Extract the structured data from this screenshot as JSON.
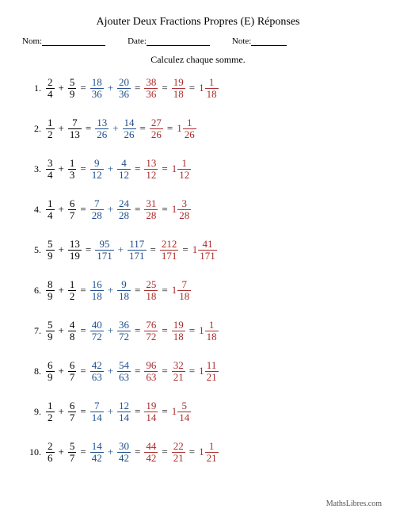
{
  "title": "Ajouter Deux Fractions Propres (E) Réponses",
  "labels": {
    "name": "Nom:",
    "date": "Date:",
    "note": "Note:"
  },
  "instruction": "Calculez chaque somme.",
  "footer": "MathsLibres.com",
  "colors": {
    "black": "#000000",
    "blue": "#1e4e8c",
    "red": "#aa2b2b",
    "bg": "#ffffff"
  },
  "problems": [
    {
      "n": "1.",
      "a": {
        "n": "2",
        "d": "4"
      },
      "b": {
        "n": "5",
        "d": "9"
      },
      "s1": {
        "n": "18",
        "d": "36"
      },
      "s2": {
        "n": "20",
        "d": "36"
      },
      "sum": {
        "n": "38",
        "d": "36"
      },
      "simp": {
        "n": "19",
        "d": "18"
      },
      "mix": {
        "w": "1",
        "n": "1",
        "d": "18"
      }
    },
    {
      "n": "2.",
      "a": {
        "n": "1",
        "d": "2"
      },
      "b": {
        "n": "7",
        "d": "13"
      },
      "s1": {
        "n": "13",
        "d": "26"
      },
      "s2": {
        "n": "14",
        "d": "26"
      },
      "sum": {
        "n": "27",
        "d": "26"
      },
      "simp": null,
      "mix": {
        "w": "1",
        "n": "1",
        "d": "26"
      }
    },
    {
      "n": "3.",
      "a": {
        "n": "3",
        "d": "4"
      },
      "b": {
        "n": "1",
        "d": "3"
      },
      "s1": {
        "n": "9",
        "d": "12"
      },
      "s2": {
        "n": "4",
        "d": "12"
      },
      "sum": {
        "n": "13",
        "d": "12"
      },
      "simp": null,
      "mix": {
        "w": "1",
        "n": "1",
        "d": "12"
      }
    },
    {
      "n": "4.",
      "a": {
        "n": "1",
        "d": "4"
      },
      "b": {
        "n": "6",
        "d": "7"
      },
      "s1": {
        "n": "7",
        "d": "28"
      },
      "s2": {
        "n": "24",
        "d": "28"
      },
      "sum": {
        "n": "31",
        "d": "28"
      },
      "simp": null,
      "mix": {
        "w": "1",
        "n": "3",
        "d": "28"
      }
    },
    {
      "n": "5.",
      "a": {
        "n": "5",
        "d": "9"
      },
      "b": {
        "n": "13",
        "d": "19"
      },
      "s1": {
        "n": "95",
        "d": "171"
      },
      "s2": {
        "n": "117",
        "d": "171"
      },
      "sum": {
        "n": "212",
        "d": "171"
      },
      "simp": null,
      "mix": {
        "w": "1",
        "n": "41",
        "d": "171"
      }
    },
    {
      "n": "6.",
      "a": {
        "n": "8",
        "d": "9"
      },
      "b": {
        "n": "1",
        "d": "2"
      },
      "s1": {
        "n": "16",
        "d": "18"
      },
      "s2": {
        "n": "9",
        "d": "18"
      },
      "sum": {
        "n": "25",
        "d": "18"
      },
      "simp": null,
      "mix": {
        "w": "1",
        "n": "7",
        "d": "18"
      }
    },
    {
      "n": "7.",
      "a": {
        "n": "5",
        "d": "9"
      },
      "b": {
        "n": "4",
        "d": "8"
      },
      "s1": {
        "n": "40",
        "d": "72"
      },
      "s2": {
        "n": "36",
        "d": "72"
      },
      "sum": {
        "n": "76",
        "d": "72"
      },
      "simp": {
        "n": "19",
        "d": "18"
      },
      "mix": {
        "w": "1",
        "n": "1",
        "d": "18"
      }
    },
    {
      "n": "8.",
      "a": {
        "n": "6",
        "d": "9"
      },
      "b": {
        "n": "6",
        "d": "7"
      },
      "s1": {
        "n": "42",
        "d": "63"
      },
      "s2": {
        "n": "54",
        "d": "63"
      },
      "sum": {
        "n": "96",
        "d": "63"
      },
      "simp": {
        "n": "32",
        "d": "21"
      },
      "mix": {
        "w": "1",
        "n": "11",
        "d": "21"
      }
    },
    {
      "n": "9.",
      "a": {
        "n": "1",
        "d": "2"
      },
      "b": {
        "n": "6",
        "d": "7"
      },
      "s1": {
        "n": "7",
        "d": "14"
      },
      "s2": {
        "n": "12",
        "d": "14"
      },
      "sum": {
        "n": "19",
        "d": "14"
      },
      "simp": null,
      "mix": {
        "w": "1",
        "n": "5",
        "d": "14"
      }
    },
    {
      "n": "10.",
      "a": {
        "n": "2",
        "d": "6"
      },
      "b": {
        "n": "5",
        "d": "7"
      },
      "s1": {
        "n": "14",
        "d": "42"
      },
      "s2": {
        "n": "30",
        "d": "42"
      },
      "sum": {
        "n": "44",
        "d": "42"
      },
      "simp": {
        "n": "22",
        "d": "21"
      },
      "mix": {
        "w": "1",
        "n": "1",
        "d": "21"
      }
    }
  ]
}
